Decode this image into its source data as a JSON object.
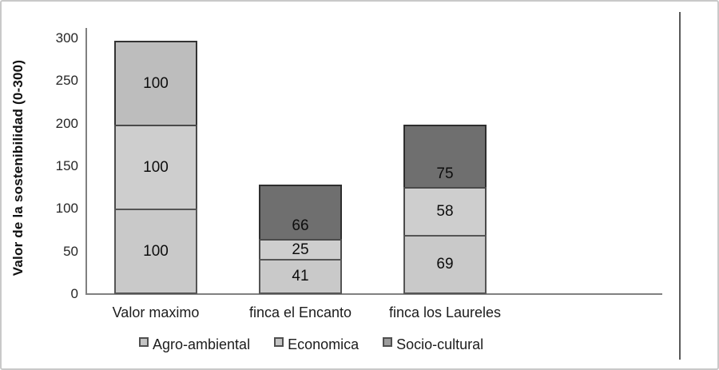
{
  "chart_data": {
    "type": "bar",
    "subtype": "stacked-vertical",
    "title": "",
    "ylabel": "Valor de la sostenibilidad (0-300)",
    "xlabel": "",
    "ylim": [
      0,
      300
    ],
    "yticks": [
      0,
      50,
      100,
      150,
      200,
      250,
      300
    ],
    "grid": false,
    "legend_position": "bottom",
    "categories": [
      "Valor maximo",
      "finca el Encanto",
      "finca los Laureles"
    ],
    "series": [
      {
        "name": "Agro-ambiental",
        "values": [
          100,
          41,
          69
        ],
        "color": "#c9c9c9",
        "border_color": "#555555",
        "legend_color": "#c4c4c4",
        "label_pos": "center"
      },
      {
        "name": "Economica",
        "values": [
          100,
          25,
          58
        ],
        "color": "#cecece",
        "border_color": "#4a4a4a",
        "legend_color": "#c4c4c4",
        "label_pos": "center"
      },
      {
        "name": "Socio-cultural",
        "values": [
          100,
          66,
          75
        ],
        "color": "#6f6f6f",
        "border_color": "#2e2e2e",
        "legend_color": "#9c9c9c",
        "label_pos": "bottom",
        "point_overrides": {
          "0": {
            "color": "#bdbdbd",
            "border_color": "#333333",
            "label_pos": "center"
          }
        }
      }
    ]
  }
}
